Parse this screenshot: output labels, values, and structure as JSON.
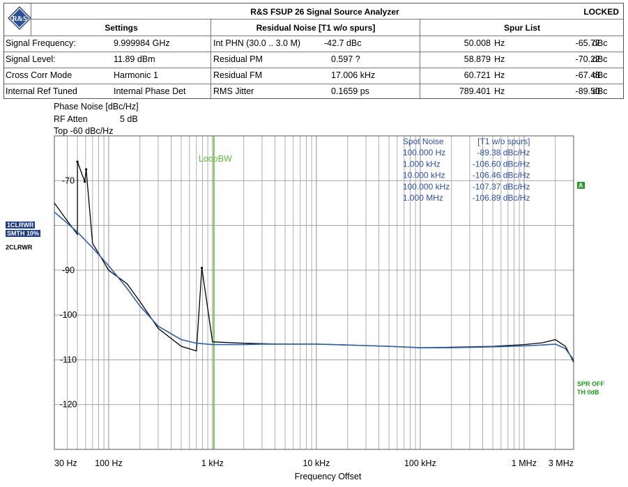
{
  "header": {
    "title": "R&S FSUP 26 Signal Source Analyzer",
    "status": "LOCKED",
    "logo_text": "R&S",
    "columns": {
      "settings": "Settings",
      "residual": "Residual Noise [T1 w/o spurs]",
      "spurs": "Spur List"
    }
  },
  "settings": [
    {
      "label": "Signal Frequency:",
      "value": "9.999984 GHz"
    },
    {
      "label": "Signal Level:",
      "value": "11.89 dBm"
    },
    {
      "label": "Cross Corr Mode",
      "value": "Harmonic 1"
    },
    {
      "label": "Internal Ref Tuned",
      "value": "Internal Phase Det"
    }
  ],
  "residual": [
    {
      "label": "Int PHN (30.0 .. 3.0 M)",
      "value": "-42.7 dBc"
    },
    {
      "label": "Residual PM",
      "value": "0.597 ?"
    },
    {
      "label": "Residual FM",
      "value": "17.006 kHz"
    },
    {
      "label": "RMS Jitter",
      "value": "0.1659 ps"
    }
  ],
  "spurs": [
    {
      "freq": "50.008",
      "funit": "Hz",
      "level": "-65.77",
      "lunit": "dBc"
    },
    {
      "freq": "58.879",
      "funit": "Hz",
      "level": "-70.22",
      "lunit": "dBc"
    },
    {
      "freq": "60.721",
      "funit": "Hz",
      "level": "-67.48",
      "lunit": "dBc"
    },
    {
      "freq": "789.401",
      "funit": "Hz",
      "level": "-89.50",
      "lunit": "dBc"
    }
  ],
  "plot_info": {
    "line1": "Phase Noise [dBc/Hz]",
    "line2_label": "RF Atten",
    "line2_value": "5 dB",
    "line3": "Top  -60 dBc/Hz"
  },
  "side_labels": {
    "trace1a": "1CLRWR",
    "trace1b": "SMTH 10%",
    "trace2": "2CLRWR",
    "marker_a": "A",
    "spr": "SPR OFF",
    "th": "TH 0dB"
  },
  "colors": {
    "raw_trace": "#000000",
    "smooth_trace": "#2a5fb4",
    "grid": "#9a9a9a",
    "loopbw": "#5fbf3a",
    "spot_text": "#2a4fc0"
  },
  "chart_data": {
    "type": "line",
    "xscale": "log",
    "xlim": [
      30,
      3000000
    ],
    "ylim": [
      -130,
      -60
    ],
    "xlabel": "Frequency Offset",
    "ylabel": "",
    "x_ticks": [
      {
        "value": 30,
        "label": "30 Hz"
      },
      {
        "value": 100,
        "label": "100 Hz"
      },
      {
        "value": 1000,
        "label": "1 kHz"
      },
      {
        "value": 10000,
        "label": "10 kHz"
      },
      {
        "value": 100000,
        "label": "100 kHz"
      },
      {
        "value": 1000000,
        "label": "1 MHz"
      },
      {
        "value": 3000000,
        "label": "3 MHz"
      }
    ],
    "y_ticks": [
      {
        "value": -70,
        "label": "-70"
      },
      {
        "value": -90,
        "label": "-90"
      },
      {
        "value": -100,
        "label": "-100"
      },
      {
        "value": -110,
        "label": "-110"
      },
      {
        "value": -120,
        "label": "-120"
      }
    ],
    "loop_bw": {
      "label": "LoopBW",
      "x": 1000
    },
    "spot_noise": {
      "header_left": "Spot Noise",
      "header_right": "[T1 w/o spurs]",
      "rows": [
        {
          "freq": "100.000 Hz",
          "value": "-89.38 dBc/Hz"
        },
        {
          "freq": "1.000 kHz",
          "value": "-106.60 dBc/Hz"
        },
        {
          "freq": "10.000 kHz",
          "value": "-106.46 dBc/Hz"
        },
        {
          "freq": "100.000 kHz",
          "value": "-107.37 dBc/Hz"
        },
        {
          "freq": "1.000 MHz",
          "value": "-106.89 dBc/Hz"
        }
      ]
    },
    "series": [
      {
        "key": "smooth",
        "x": [
          30,
          40,
          50,
          70,
          100,
          150,
          200,
          300,
          500,
          700,
          1000,
          2000,
          3000,
          5000,
          10000,
          20000,
          50000,
          100000,
          200000,
          500000,
          1000000,
          1500000,
          2000000,
          2500000,
          3000000
        ],
        "y": [
          -77,
          -79.5,
          -81.5,
          -85,
          -89,
          -94,
          -98,
          -102.5,
          -105.5,
          -106.3,
          -106.6,
          -106.6,
          -106.5,
          -106.5,
          -106.5,
          -106.7,
          -107.0,
          -107.3,
          -107.3,
          -107.1,
          -106.9,
          -106.7,
          -106.5,
          -107.5,
          -110
        ]
      },
      {
        "key": "raw",
        "x": [
          30,
          40,
          50,
          70,
          100,
          150,
          200,
          300,
          500,
          700,
          1000,
          2000,
          3000,
          5000,
          10000,
          20000,
          50000,
          100000,
          200000,
          500000,
          1000000,
          1500000,
          2000000,
          2500000,
          3000000
        ],
        "y": [
          -75,
          -79,
          -82,
          -84,
          -90,
          -93,
          -97,
          -103,
          -107,
          -108,
          -106,
          -106.3,
          -106.4,
          -106.5,
          -106.5,
          -106.7,
          -107.0,
          -107.3,
          -107.2,
          -107.0,
          -106.6,
          -106.2,
          -105.5,
          -107,
          -110.5
        ]
      }
    ],
    "spurs": [
      {
        "x": 50.008,
        "y": -65.77
      },
      {
        "x": 58.879,
        "y": -70.22
      },
      {
        "x": 60.721,
        "y": -67.48
      },
      {
        "x": 789.401,
        "y": -89.5
      }
    ]
  }
}
